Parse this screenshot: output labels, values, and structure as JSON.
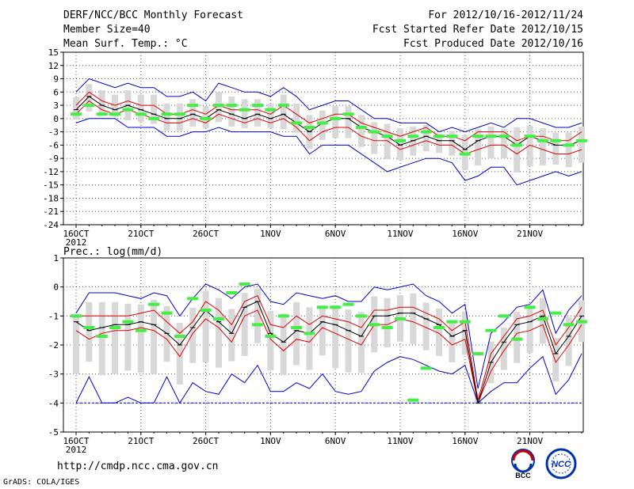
{
  "header": {
    "title": "DERF/NCC/BCC Monthly Forecast",
    "member_size": "Member Size=40",
    "variable": "Mean Surf. Temp.: °C",
    "period": "For 2012/10/16-2012/11/24",
    "started": "Fcst Started Refer Date 2012/10/15",
    "produced": "Fcst Produced Date 2012/10/16"
  },
  "footer": {
    "url": "http://cmdp.ncc.cma.gov.cn",
    "grads": "GrADS: COLA/IGES",
    "logo_left": "BCC",
    "logo_right": "NCC"
  },
  "colors": {
    "ensemble_mean": "#000000",
    "inner_bounds": "#dd0000",
    "outer_bounds": "#0000cc",
    "observed": "#44ee44",
    "box": "#d8d8d8"
  },
  "chart_data": [
    {
      "type": "line",
      "title": "Mean Surf. Temp.: °C",
      "ylabel": "°C",
      "ylim": [
        -24,
        15
      ],
      "yticks": [
        "15",
        "12",
        "9",
        "6",
        "3",
        "0",
        "-3",
        "-6",
        "-9",
        "-12",
        "-15",
        "-18",
        "-21",
        "-24"
      ],
      "xticks": [
        "16OCT",
        "21OCT",
        "26OCT",
        "1NOV",
        "6NOV",
        "11NOV",
        "16NOV",
        "21NOV"
      ],
      "xyear": "2012",
      "days": 40,
      "series": [
        {
          "name": "upper",
          "values": [
            6,
            9,
            8,
            7,
            8,
            7,
            7,
            5,
            5,
            6,
            4,
            8,
            7,
            6,
            6,
            5,
            7,
            5,
            2,
            3,
            4,
            4,
            2,
            0,
            0,
            -1,
            -1,
            -1,
            -3,
            -2,
            -3,
            -2,
            -1,
            -2,
            0,
            0,
            -1,
            -2,
            -2,
            -1
          ]
        },
        {
          "name": "q90",
          "values": [
            3,
            6,
            4,
            3,
            4,
            3,
            3,
            1,
            1,
            2,
            1,
            3,
            2,
            2,
            2,
            1,
            3,
            1,
            -1,
            0,
            1,
            1,
            -1,
            -2,
            -3,
            -4,
            -3,
            -2,
            -4,
            -4,
            -5,
            -3,
            -3,
            -3,
            -5,
            -4,
            -4,
            -5,
            -5,
            -3
          ]
        },
        {
          "name": "mean",
          "values": [
            2,
            5,
            3,
            2,
            3,
            2,
            1,
            0,
            0,
            1,
            0,
            2,
            1,
            0,
            1,
            0,
            1,
            -1,
            -3,
            -1,
            0,
            0,
            -2,
            -3,
            -4,
            -6,
            -5,
            -4,
            -5,
            -5,
            -7,
            -5,
            -4,
            -4,
            -6,
            -4,
            -5,
            -6,
            -6,
            -5
          ]
        },
        {
          "name": "q10",
          "values": [
            1,
            4,
            2,
            1,
            2,
            1,
            0,
            -1,
            -1,
            0,
            -1,
            1,
            0,
            -1,
            0,
            -1,
            0,
            -2,
            -5,
            -3,
            -2,
            -2,
            -4,
            -5,
            -5,
            -7,
            -6,
            -5,
            -6,
            -6,
            -8,
            -7,
            -6,
            -6,
            -8,
            -6,
            -7,
            -8,
            -8,
            -7
          ]
        },
        {
          "name": "lower",
          "values": [
            -1,
            0,
            0,
            0,
            -2,
            -2,
            -2,
            -4,
            -4,
            -3,
            -3,
            -2,
            -3,
            -3,
            -3,
            -3,
            -4,
            -4,
            -8,
            -6,
            -6,
            -6,
            -8,
            -10,
            -12,
            -11,
            -10,
            -9,
            -9,
            -10,
            -14,
            -13,
            -11,
            -11,
            -15,
            -14,
            -13,
            -12,
            -13,
            -12
          ]
        },
        {
          "name": "observed",
          "values": [
            1,
            3,
            1,
            1,
            2,
            1,
            0,
            1,
            1,
            3,
            0,
            3,
            3,
            2,
            3,
            2,
            3,
            -1,
            -2,
            -1,
            0,
            1,
            -2,
            -3,
            -4,
            -5,
            -4,
            -3,
            -4,
            -4,
            -8,
            -4,
            -4,
            -4,
            -6,
            -4,
            -5,
            -5,
            -6,
            -5
          ]
        }
      ]
    },
    {
      "type": "line",
      "title": "Prec.: log(mm/d)",
      "ylabel": "log(mm/d)",
      "ylim": [
        -5,
        1
      ],
      "yticks": [
        "1",
        "0",
        "-1",
        "-2",
        "-3",
        "-4",
        "-5"
      ],
      "xticks": [
        "16OCT",
        "21OCT",
        "26OCT",
        "1NOV",
        "6NOV",
        "11NOV",
        "16NOV",
        "21NOV"
      ],
      "xyear": "2012",
      "days": 40,
      "series": [
        {
          "name": "upper",
          "values": [
            -0.9,
            -0.2,
            -0.2,
            -0.2,
            -0.3,
            -0.4,
            -0.2,
            -0.3,
            -1.0,
            -0.4,
            0.1,
            -0.1,
            -0.4,
            0.0,
            0.1,
            -0.5,
            -0.6,
            -0.2,
            -0.3,
            -0.4,
            -0.3,
            -0.5,
            -0.5,
            0.0,
            -0.1,
            0.0,
            0.1,
            -0.3,
            -0.5,
            -0.9,
            -0.6,
            -3.5,
            -1.6,
            -1.2,
            -0.7,
            -0.6,
            -0.1,
            -1.6,
            -0.8,
            -0.3
          ]
        },
        {
          "name": "q90",
          "values": [
            -1.0,
            -1.0,
            -1.0,
            -1.0,
            -1.0,
            -0.9,
            -0.8,
            -1.2,
            -1.6,
            -1.2,
            -0.5,
            -0.8,
            -1.3,
            -0.5,
            -0.3,
            -1.3,
            -1.4,
            -1.0,
            -1.3,
            -1.0,
            -1.1,
            -1.2,
            -1.4,
            -0.8,
            -0.8,
            -0.7,
            -0.7,
            -0.9,
            -1.1,
            -1.5,
            -1.2,
            -3.9,
            -2.3,
            -1.7,
            -1.1,
            -1.0,
            -0.8,
            -2.0,
            -1.4,
            -0.7
          ]
        },
        {
          "name": "mean",
          "values": [
            -1.2,
            -1.5,
            -1.4,
            -1.3,
            -1.3,
            -1.2,
            -1.3,
            -1.6,
            -2.0,
            -1.4,
            -0.8,
            -1.2,
            -1.6,
            -0.7,
            -0.5,
            -1.6,
            -1.9,
            -1.5,
            -1.6,
            -1.2,
            -1.3,
            -1.5,
            -1.7,
            -1.0,
            -1.0,
            -0.9,
            -0.9,
            -1.1,
            -1.3,
            -1.7,
            -1.5,
            -4.0,
            -2.6,
            -1.9,
            -1.3,
            -1.2,
            -1.0,
            -2.3,
            -1.7,
            -1.0
          ]
        },
        {
          "name": "q10",
          "values": [
            -1.5,
            -1.8,
            -1.6,
            -1.5,
            -1.5,
            -1.4,
            -1.5,
            -1.8,
            -2.4,
            -1.6,
            -1.1,
            -1.4,
            -1.9,
            -1.0,
            -0.8,
            -1.8,
            -2.2,
            -1.8,
            -1.9,
            -1.4,
            -1.6,
            -1.8,
            -2.0,
            -1.3,
            -1.3,
            -1.1,
            -1.2,
            -1.4,
            -1.6,
            -2.0,
            -1.8,
            -4.0,
            -2.9,
            -2.2,
            -1.6,
            -1.5,
            -1.3,
            -2.6,
            -2.0,
            -1.3
          ]
        },
        {
          "name": "lower",
          "values": [
            -4.0,
            -3.1,
            -4.0,
            -4.0,
            -3.8,
            -4.0,
            -4.0,
            -3.1,
            -4.0,
            -3.3,
            -3.6,
            -3.7,
            -3.0,
            -3.3,
            -2.7,
            -3.6,
            -3.6,
            -3.3,
            -3.5,
            -3.0,
            -3.6,
            -3.7,
            -3.6,
            -2.9,
            -2.6,
            -2.4,
            -2.5,
            -2.7,
            -2.9,
            -3.0,
            -2.7,
            -4.0,
            -3.6,
            -3.3,
            -3.3,
            -2.8,
            -2.4,
            -3.7,
            -3.2,
            -2.3
          ]
        },
        {
          "name": "observed",
          "values": [
            -1.0,
            -1.4,
            -1.7,
            -1.4,
            -1.2,
            -1.5,
            -0.6,
            -0.9,
            -1.7,
            -0.4,
            -0.8,
            -1.1,
            -0.2,
            0.1,
            -1.3,
            -1.7,
            -1.0,
            -1.4,
            -1.6,
            -0.7,
            -0.7,
            -0.6,
            -1.0,
            -1.3,
            -1.4,
            -1.1,
            -3.9,
            -2.8,
            -1.4,
            -1.2,
            -1.2,
            -2.3,
            -1.5,
            -1.0,
            -1.8,
            -0.7,
            -1.1,
            -0.9,
            -1.3,
            -1.2
          ]
        },
        {
          "name": "floor",
          "values": [
            -4,
            -4,
            -4,
            -4,
            -4,
            -4,
            -4,
            -4,
            -4,
            -4,
            -4,
            -4,
            -4,
            -4,
            -4,
            -4,
            -4,
            -4,
            -4,
            -4,
            -4,
            -4,
            -4,
            -4,
            -4,
            -4,
            -4,
            -4,
            -4,
            -4,
            -4,
            -4,
            -4,
            -4,
            -4,
            -4,
            -4,
            -4,
            -4,
            -4
          ]
        }
      ]
    }
  ]
}
